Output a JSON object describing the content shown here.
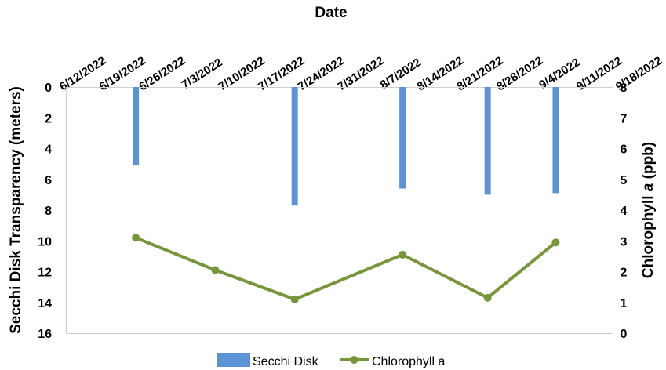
{
  "chart_data": {
    "type": "bar+line",
    "title": "",
    "x_axis": {
      "label": "Date",
      "position": "top",
      "tick_labels": [
        "6/12/2022",
        "6/19/2022",
        "6/26/2022",
        "7/3/2022",
        "7/10/2022",
        "7/17/2022",
        "7/24/2022",
        "7/31/2022",
        "8/7/2022",
        "8/14/2022",
        "8/21/2022",
        "8/28/2022",
        "9/4/2022",
        "9/11/2022",
        "9/18/2022"
      ]
    },
    "y_left": {
      "label": "Secchi Disk Transparency (meters)",
      "ylim": [
        0,
        16
      ],
      "inverted": true,
      "ticks": [
        0,
        2,
        4,
        6,
        8,
        10,
        12,
        14,
        16
      ]
    },
    "y_right": {
      "label_main": "Chlorophyll ",
      "label_italic": "a",
      "label_unit": " (ppb)",
      "ylim": [
        0,
        8
      ],
      "ticks": [
        0,
        1,
        2,
        3,
        4,
        5,
        6,
        7,
        8
      ]
    },
    "series": [
      {
        "name": "Secchi Disk",
        "type": "bar",
        "axis": "left",
        "color": "#5B93D6",
        "points": [
          {
            "x": "6/21/2022",
            "y": 5.1
          },
          {
            "x": "7/19/2022",
            "y": 7.7
          },
          {
            "x": "8/7/2022",
            "y": 6.6
          },
          {
            "x": "8/22/2022",
            "y": 7.0
          },
          {
            "x": "9/3/2022",
            "y": 6.9
          }
        ]
      },
      {
        "name": "Chlorophyll a",
        "type": "line",
        "axis": "right",
        "color": "#77963A",
        "points": [
          {
            "x": "6/21/2022",
            "y": 3.1
          },
          {
            "x": "7/5/2022",
            "y": 2.05
          },
          {
            "x": "7/19/2022",
            "y": 1.1
          },
          {
            "x": "8/7/2022",
            "y": 2.55
          },
          {
            "x": "8/22/2022",
            "y": 1.15
          },
          {
            "x": "9/3/2022",
            "y": 2.95
          }
        ]
      }
    ],
    "legend": {
      "position": "bottom",
      "items": [
        "Secchi Disk",
        "Chlorophyll a"
      ]
    },
    "grid": false
  }
}
